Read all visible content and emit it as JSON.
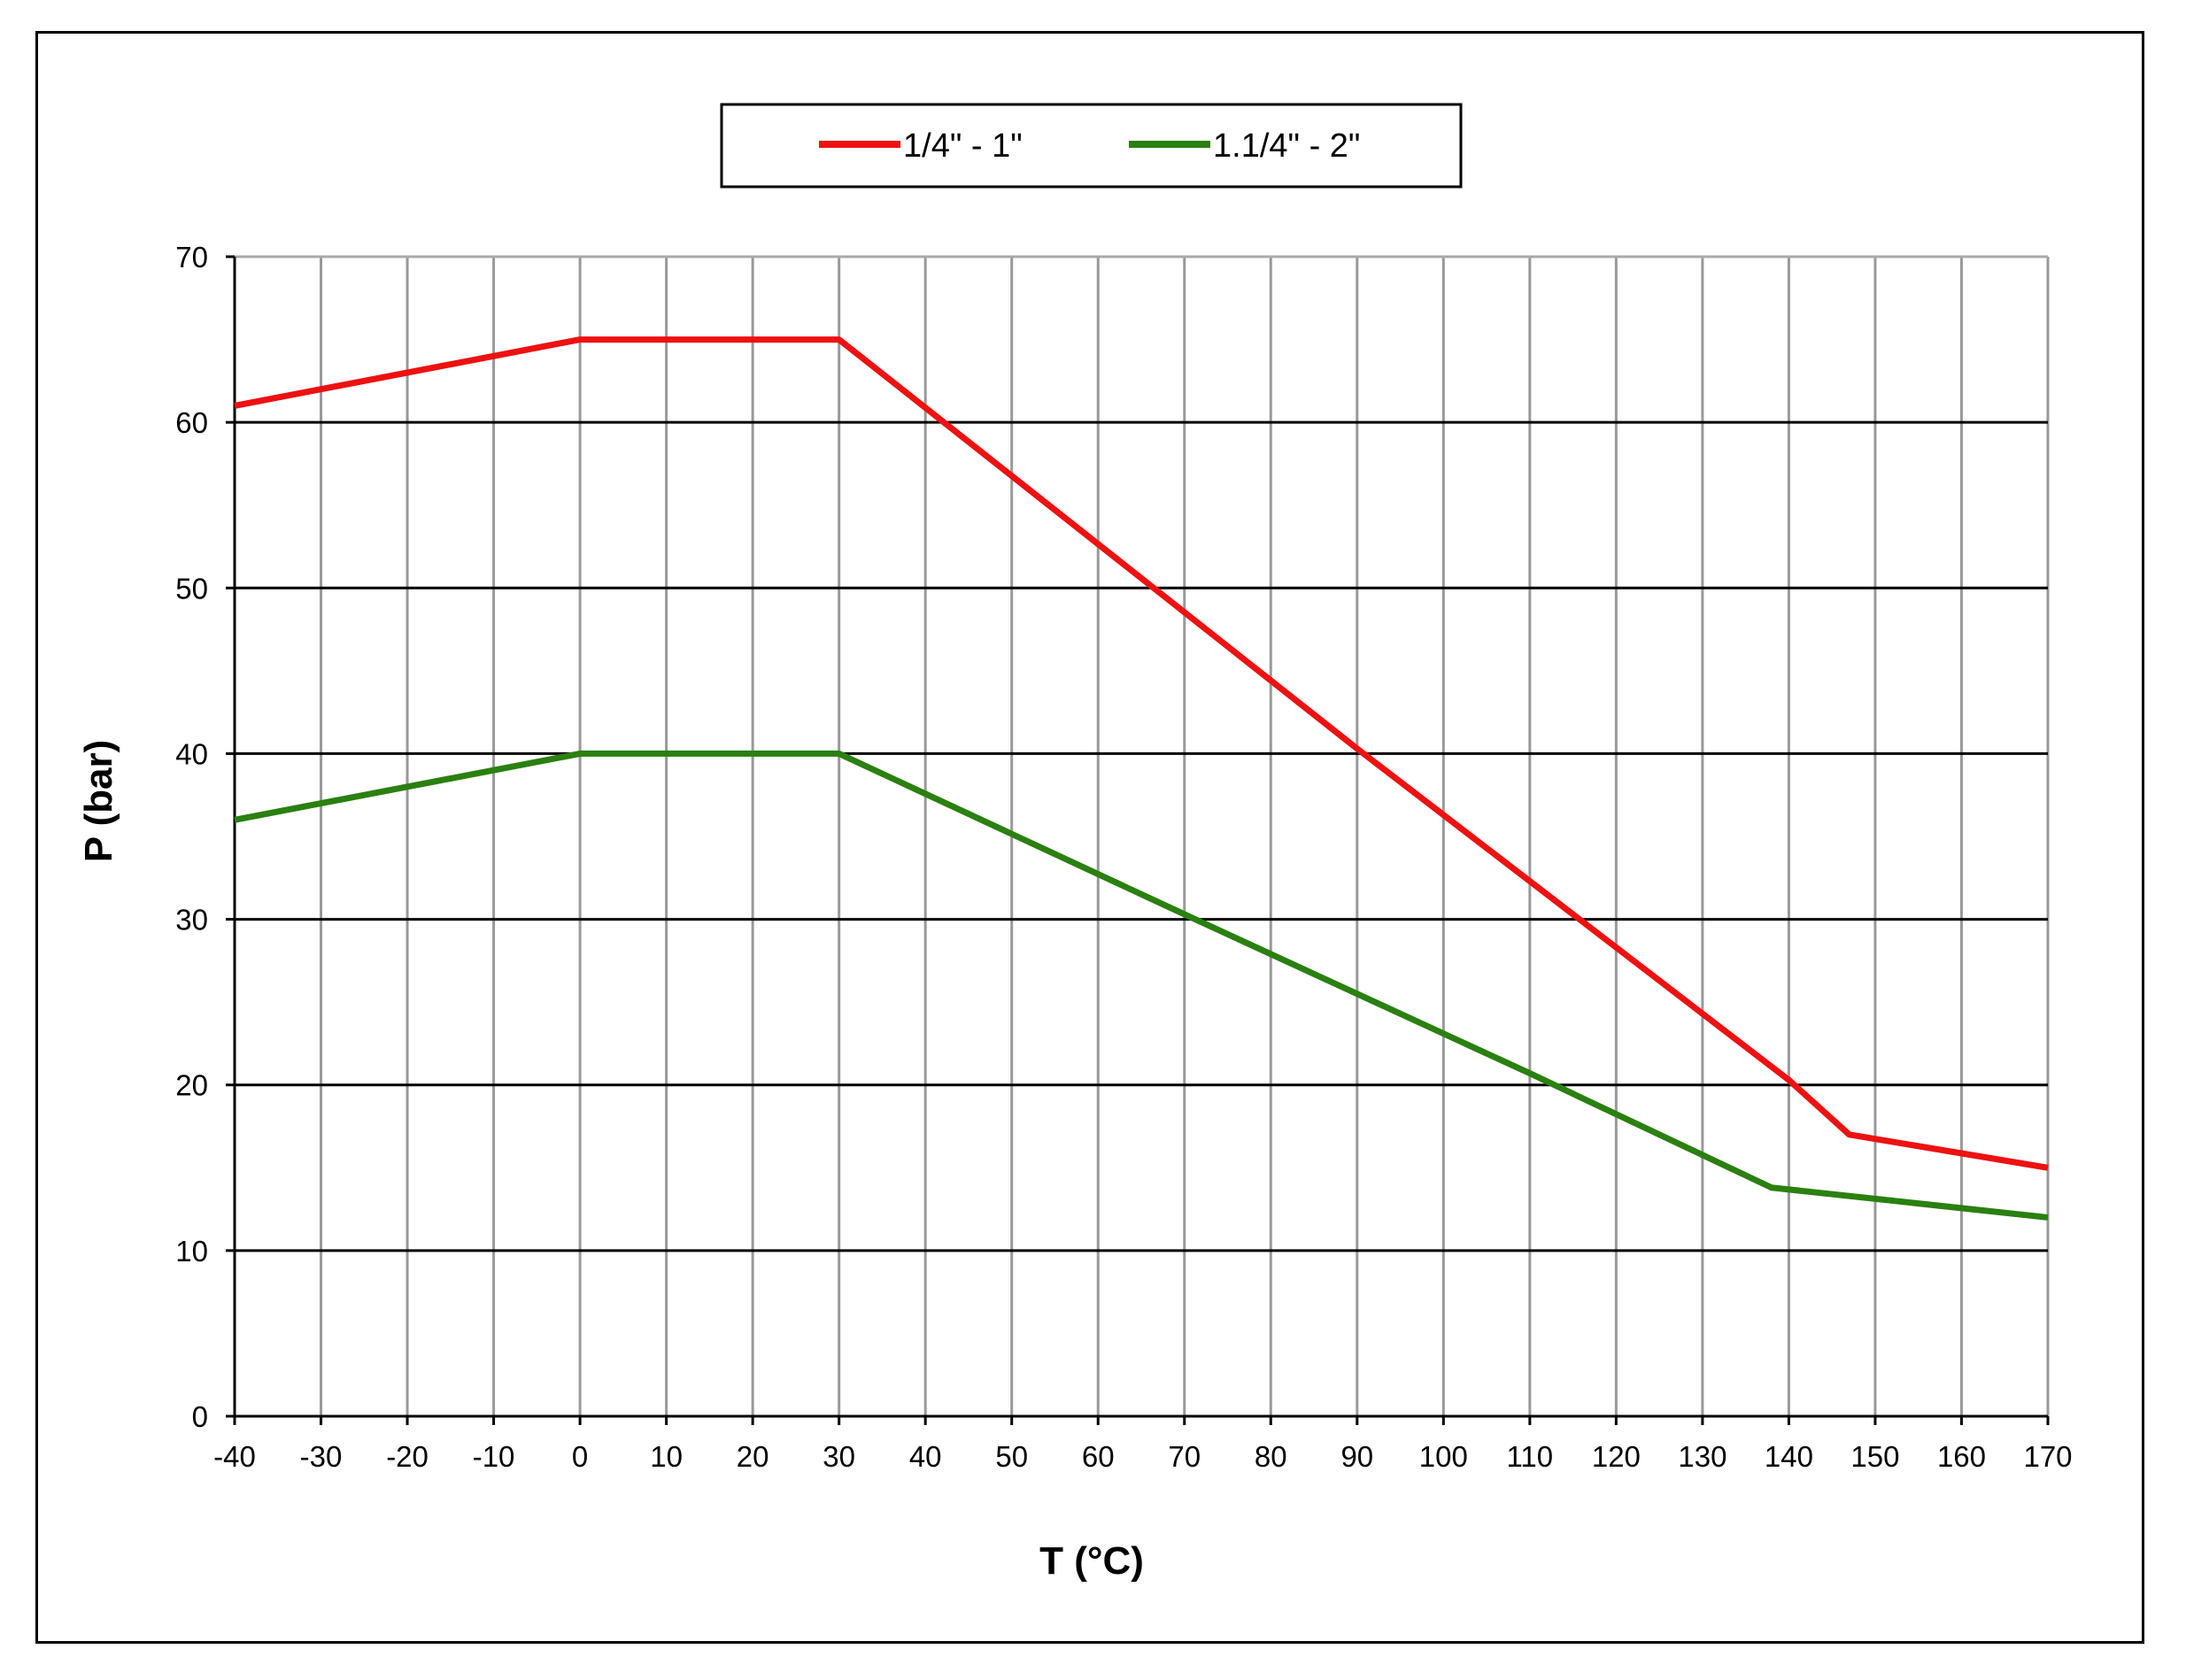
{
  "chart_data": {
    "type": "line",
    "title": "",
    "xlabel": "T (°C)",
    "ylabel": "P (bar)",
    "xlim": [
      -40,
      170
    ],
    "ylim": [
      0,
      70
    ],
    "x_ticks": [
      -40,
      -30,
      -20,
      -10,
      0,
      10,
      20,
      30,
      40,
      50,
      60,
      70,
      80,
      90,
      100,
      110,
      120,
      130,
      140,
      150,
      160,
      170
    ],
    "y_ticks": [
      0,
      10,
      20,
      30,
      40,
      50,
      60,
      70
    ],
    "grid": true,
    "legend_position": "top-center",
    "series": [
      {
        "name": "1/4\" - 1\"",
        "color": "#ee1111",
        "points": [
          [
            -40,
            61
          ],
          [
            0,
            65
          ],
          [
            30,
            65
          ],
          [
            90,
            40.3
          ],
          [
            140,
            20.3
          ],
          [
            147,
            17
          ],
          [
            170,
            15
          ]
        ]
      },
      {
        "name": "1.1/4\" - 2\"",
        "color": "#2a8010",
        "points": [
          [
            -40,
            36
          ],
          [
            0,
            40
          ],
          [
            30,
            40
          ],
          [
            70,
            30.3
          ],
          [
            110,
            20.7
          ],
          [
            138,
            13.8
          ],
          [
            170,
            12
          ]
        ]
      }
    ]
  }
}
